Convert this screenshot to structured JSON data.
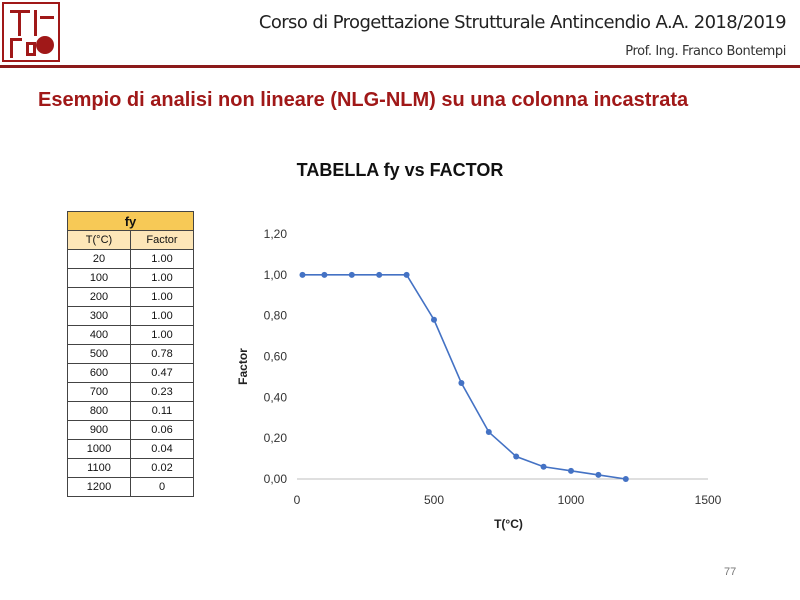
{
  "header": {
    "course": "Corso di Progettazione Strutturale Antincendio A.A. 2018/2019",
    "professor": "Prof. Ing. Franco Bontempi",
    "logo_color": "#a01818"
  },
  "slide_title": "Esempio di analisi non lineare (NLG-NLM) su una colonna incastrata",
  "page_number": "77",
  "table": {
    "title": "fy",
    "columns": [
      "T(°C)",
      "Factor"
    ],
    "rows": [
      [
        "20",
        "1.00"
      ],
      [
        "100",
        "1.00"
      ],
      [
        "200",
        "1.00"
      ],
      [
        "300",
        "1.00"
      ],
      [
        "400",
        "1.00"
      ],
      [
        "500",
        "0.78"
      ],
      [
        "600",
        "0.47"
      ],
      [
        "700",
        "0.23"
      ],
      [
        "800",
        "0.11"
      ],
      [
        "900",
        "0.06"
      ],
      [
        "1000",
        "0.04"
      ],
      [
        "1100",
        "0.02"
      ],
      [
        "1200",
        "0"
      ]
    ]
  },
  "chart_data": {
    "type": "line",
    "title": "TABELLA fy vs FACTOR",
    "xlabel": "T(°C)",
    "ylabel": "Factor",
    "xlim": [
      0,
      1500
    ],
    "ylim": [
      0,
      1.2
    ],
    "xticks": [
      "0",
      "500",
      "1000",
      "1500"
    ],
    "yticks": [
      "0,00",
      "0,20",
      "0,40",
      "0,60",
      "0,80",
      "1,00",
      "1,20"
    ],
    "grid": false,
    "color": "#4472c4",
    "x": [
      20,
      100,
      200,
      300,
      400,
      500,
      600,
      700,
      800,
      900,
      1000,
      1100,
      1200
    ],
    "y": [
      1.0,
      1.0,
      1.0,
      1.0,
      1.0,
      0.78,
      0.47,
      0.23,
      0.11,
      0.06,
      0.04,
      0.02,
      0
    ]
  }
}
